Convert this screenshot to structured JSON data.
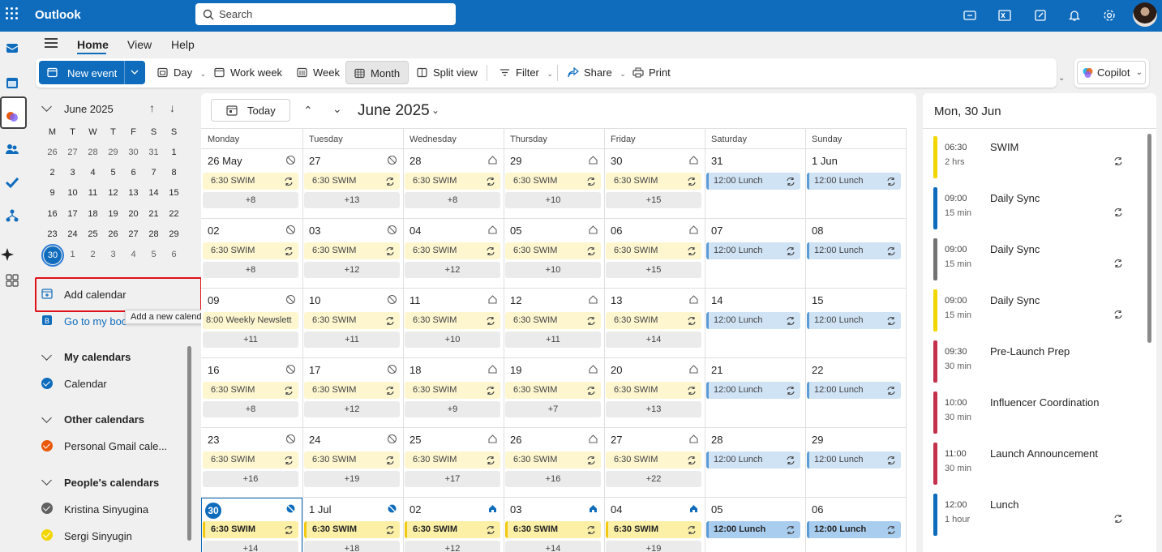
{
  "app": {
    "title": "Outlook",
    "search_placeholder": "Search"
  },
  "tabs": [
    {
      "label": "Home",
      "active": true
    },
    {
      "label": "View"
    },
    {
      "label": "Help"
    }
  ],
  "ribbon": {
    "new_event": "New event",
    "day": "Day",
    "work_week": "Work week",
    "week": "Week",
    "month": "Month",
    "split_view": "Split view",
    "filter": "Filter",
    "share": "Share",
    "print": "Print",
    "copilot": "Copilot"
  },
  "mini_calendar": {
    "month_label": "June 2025",
    "weekdays": [
      "M",
      "T",
      "W",
      "T",
      "F",
      "S",
      "S"
    ],
    "weeks": [
      [
        "26",
        "27",
        "28",
        "29",
        "30",
        "31",
        "1"
      ],
      [
        "2",
        "3",
        "4",
        "5",
        "6",
        "7",
        "8"
      ],
      [
        "9",
        "10",
        "11",
        "12",
        "13",
        "14",
        "15"
      ],
      [
        "16",
        "17",
        "18",
        "19",
        "20",
        "21",
        "22"
      ],
      [
        "23",
        "24",
        "25",
        "26",
        "27",
        "28",
        "29"
      ],
      [
        "30",
        "1",
        "2",
        "3",
        "4",
        "5",
        "6"
      ]
    ],
    "today": "30"
  },
  "left_pane": {
    "add_calendar": "Add calendar",
    "tooltip": "Add a new calendar",
    "go_to_booking": "Go to my boo",
    "my_calendars": "My calendars",
    "calendar": "Calendar",
    "other_calendars": "Other calendars",
    "personal_gmail": "Personal Gmail cale...",
    "peoples_calendars": "People's calendars",
    "people": [
      "Kristina Sinyugina",
      "Sergi Sinyugin"
    ],
    "colors": {
      "calendar": "#0f6cbd",
      "gmail": "#e8590c",
      "kristina": "#616161",
      "sergi": "#f2c811"
    }
  },
  "main": {
    "today_button": "Today",
    "month_title": "June 2025",
    "weekday_headers": [
      "Monday",
      "Tuesday",
      "Wednesday",
      "Thursday",
      "Friday",
      "Saturday",
      "Sunday"
    ],
    "weeks": [
      {
        "days": [
          "26 May",
          "27",
          "28",
          "29",
          "30",
          "31",
          "1 Jun"
        ],
        "events": [
          "6:30 SWIM",
          "6:30 SWIM",
          "6:30 SWIM",
          "6:30 SWIM",
          "6:30 SWIM",
          "12:00 Lunch",
          "12:00 Lunch"
        ],
        "more": [
          "+8",
          "+13",
          "+8",
          "+10",
          "+15",
          "",
          ""
        ]
      },
      {
        "days": [
          "02",
          "03",
          "04",
          "05",
          "06",
          "07",
          "08"
        ],
        "events": [
          "6:30 SWIM",
          "6:30 SWIM",
          "6:30 SWIM",
          "6:30 SWIM",
          "6:30 SWIM",
          "12:00 Lunch",
          "12:00 Lunch"
        ],
        "more": [
          "+8",
          "+12",
          "+12",
          "+10",
          "+15",
          "",
          ""
        ]
      },
      {
        "days": [
          "09",
          "10",
          "11",
          "12",
          "13",
          "14",
          "15"
        ],
        "events": [
          "8:00 Weekly Newslett",
          "6:30 SWIM",
          "6:30 SWIM",
          "6:30 SWIM",
          "6:30 SWIM",
          "12:00 Lunch",
          "12:00 Lunch"
        ],
        "more": [
          "+11",
          "+11",
          "+10",
          "+11",
          "+14",
          "",
          ""
        ]
      },
      {
        "days": [
          "16",
          "17",
          "18",
          "19",
          "20",
          "21",
          "22"
        ],
        "events": [
          "6:30 SWIM",
          "6:30 SWIM",
          "6:30 SWIM",
          "6:30 SWIM",
          "6:30 SWIM",
          "12:00 Lunch",
          "12:00 Lunch"
        ],
        "more": [
          "+8",
          "+12",
          "+9",
          "+7",
          "+13",
          "",
          ""
        ]
      },
      {
        "days": [
          "23",
          "24",
          "25",
          "26",
          "27",
          "28",
          "29"
        ],
        "events": [
          "6:30 SWIM",
          "6:30 SWIM",
          "6:30 SWIM",
          "6:30 SWIM",
          "6:30 SWIM",
          "12:00 Lunch",
          "12:00 Lunch"
        ],
        "more": [
          "+16",
          "+19",
          "+17",
          "+16",
          "+22",
          "",
          ""
        ]
      },
      {
        "days": [
          "30",
          "1 Jul",
          "02",
          "03",
          "04",
          "05",
          "06"
        ],
        "events": [
          "6:30 SWIM",
          "6:30 SWIM",
          "6:30 SWIM",
          "6:30 SWIM",
          "6:30 SWIM",
          "12:00 Lunch",
          "12:00 Lunch"
        ],
        "more": [
          "+14",
          "+18",
          "+12",
          "+14",
          "+19",
          "",
          ""
        ]
      }
    ]
  },
  "agenda": {
    "title": "Mon, 30 Jun",
    "items": [
      {
        "time": "06:30",
        "duration": "2 hrs",
        "name": "SWIM",
        "color": "#f2d600"
      },
      {
        "time": "09:00",
        "duration": "15 min",
        "name": "Daily Sync",
        "color": "#0f6cbd"
      },
      {
        "time": "09:00",
        "duration": "15 min",
        "name": "Daily Sync",
        "color": "#737373"
      },
      {
        "time": "09:00",
        "duration": "15 min",
        "name": "Daily Sync",
        "color": "#f2d600"
      },
      {
        "time": "09:30",
        "duration": "30 min",
        "name": "Pre-Launch Prep",
        "color": "#c4314b"
      },
      {
        "time": "10:00",
        "duration": "30 min",
        "name": "Influencer Coordination",
        "color": "#c4314b"
      },
      {
        "time": "11:00",
        "duration": "30 min",
        "name": "Launch Announcement",
        "color": "#c4314b"
      },
      {
        "time": "12:00",
        "duration": "1 hour",
        "name": "Lunch",
        "color": "#0f6cbd"
      }
    ]
  }
}
